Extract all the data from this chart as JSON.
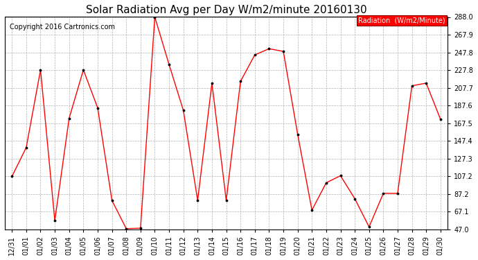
{
  "title": "Solar Radiation Avg per Day W/m2/minute 20160130",
  "copyright": "Copyright 2016 Cartronics.com",
  "legend_label": "Radiation  (W/m2/Minute)",
  "x_labels": [
    "12/31",
    "01/01",
    "01/02",
    "01/03",
    "01/04",
    "01/05",
    "01/06",
    "01/07",
    "01/08",
    "01/09",
    "01/10",
    "01/11",
    "01/12",
    "01/13",
    "01/14",
    "01/15",
    "01/16",
    "01/17",
    "01/18",
    "01/19",
    "01/20",
    "01/21",
    "01/22",
    "01/23",
    "01/24",
    "01/25",
    "01/26",
    "01/27",
    "01/28",
    "01/29",
    "01/30"
  ],
  "y_values": [
    107.2,
    140.0,
    228.0,
    57.0,
    173.0,
    228.0,
    185.0,
    80.0,
    48.0,
    48.5,
    288.0,
    234.0,
    182.0,
    80.0,
    213.0,
    80.0,
    215.0,
    245.0,
    252.0,
    249.0,
    155.0,
    69.0,
    100.0,
    108.0,
    82.0,
    50.0,
    88.0,
    88.0,
    210.0,
    213.0,
    172.0
  ],
  "ymin": 47.0,
  "ymax": 288.0,
  "yticks": [
    47.0,
    67.1,
    87.2,
    107.2,
    127.3,
    147.4,
    167.5,
    187.6,
    207.7,
    227.8,
    247.8,
    267.9,
    288.0
  ],
  "line_color": "red",
  "marker": ".",
  "marker_color": "black",
  "bg_color": "#ffffff",
  "grid_color": "#aaaaaa",
  "legend_bg": "red",
  "legend_text_color": "white",
  "title_fontsize": 11,
  "tick_fontsize": 7,
  "copyright_fontsize": 7
}
